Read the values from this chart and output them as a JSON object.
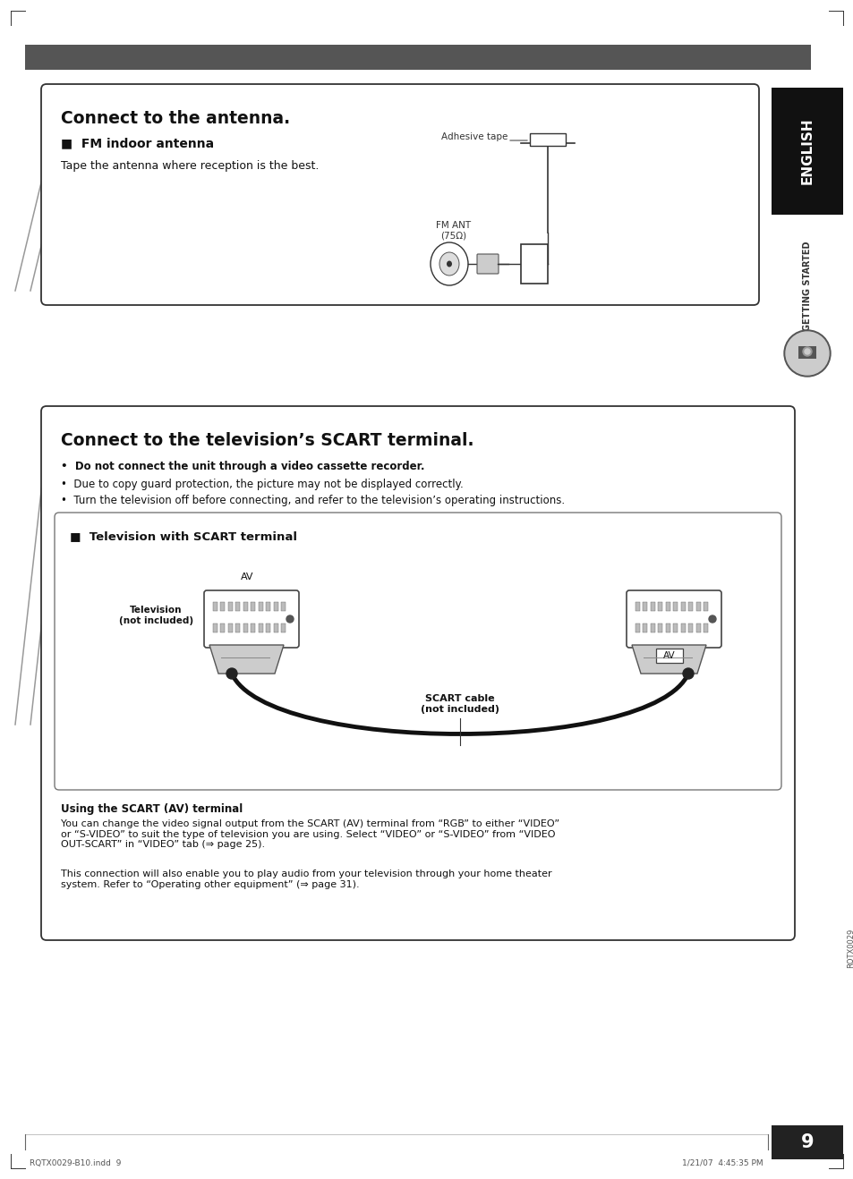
{
  "page_bg": "#ffffff",
  "header_bar_color": "#555555",
  "page_num": "9",
  "footer_left": "RQTX0029-B10.indd  9",
  "footer_right": "1/21/07  4:45:35 PM",
  "section1_title": "Connect to the antenna.",
  "section1_sub": "■  FM indoor antenna",
  "section1_body": "Tape the antenna where reception is the best.",
  "section1_annot": "Adhesive tape",
  "section1_fm": "FM ANT\n(75Ω)",
  "section2_title": "Connect to the television’s SCART terminal.",
  "section2_bullets": [
    "Do not connect the unit through a video cassette recorder.",
    "Due to copy guard protection, the picture may not be displayed correctly.",
    "Turn the television off before connecting, and refer to the television’s operating instructions."
  ],
  "section2_sub": "■  Television with SCART terminal",
  "section2_tv_label": "Television\n(not included)",
  "section2_av_label": "AV",
  "section2_av2_label": "AV",
  "section2_scart_label": "SCART cable\n(not included)",
  "section2_using_title": "Using the SCART (AV) terminal",
  "section2_using_body1": "You can change the video signal output from the SCART (AV) terminal from “RGB” to either “VIDEO”\nor “S-VIDEO” to suit the type of television you are using. Select “VIDEO” or “S-VIDEO” from “VIDEO\nOUT-SCART” in “VIDEO” tab (⇒ page 25).",
  "section2_using_body2": "This connection will also enable you to play audio from your television through your home theater\nsystem. Refer to “Operating other equipment” (⇒ page 31).",
  "sidebar_english": "ENGLISH",
  "sidebar_getting": "GETTING STARTED"
}
